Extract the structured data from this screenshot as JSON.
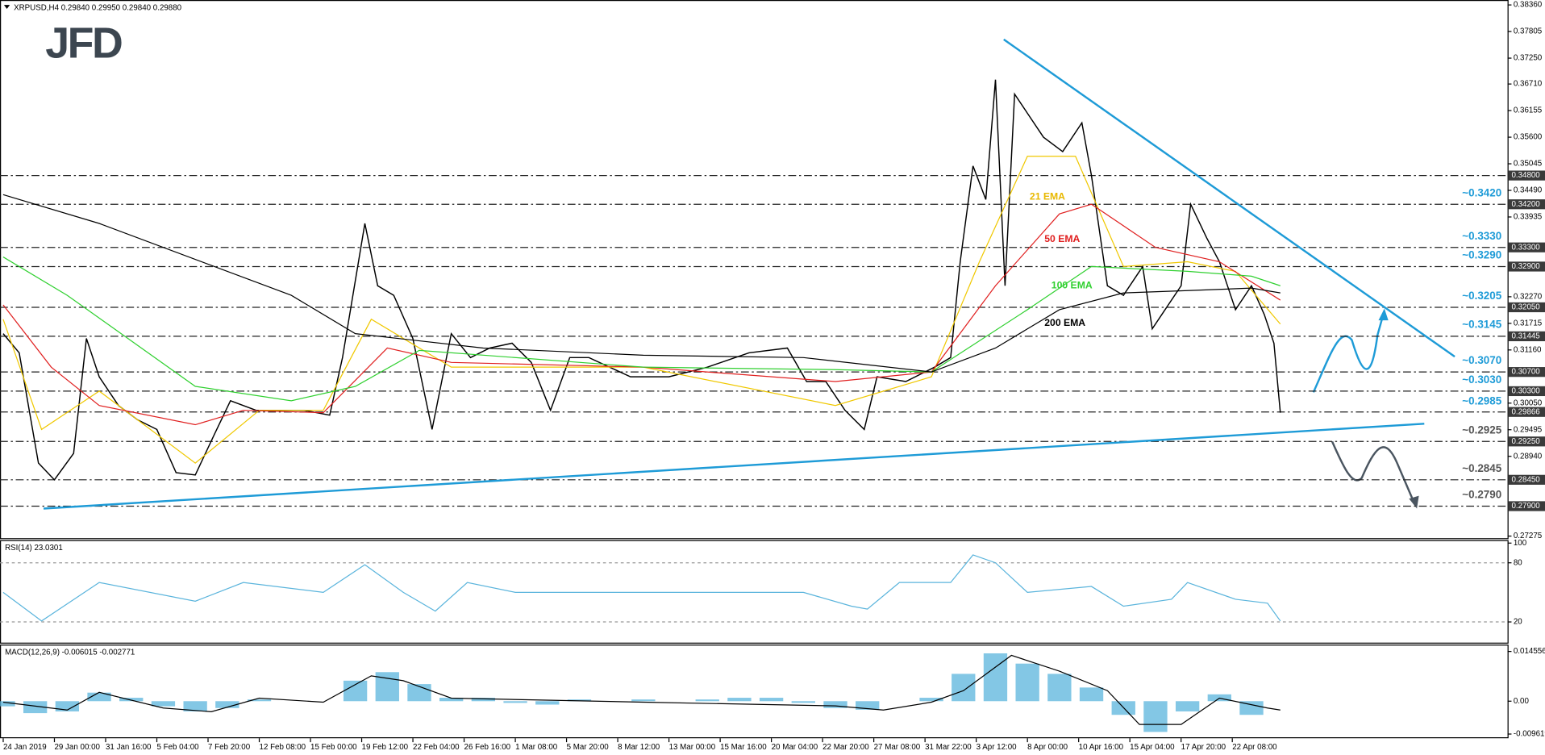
{
  "chart_data": [
    {
      "type": "line",
      "title": "XRPUSD,H4",
      "subtitle": "0.29840 0.29950 0.29840 0.29880",
      "logo": "JFD",
      "xlim": [
        -1,
        470
      ],
      "ylim": [
        0.27232,
        0.38463
      ],
      "xticks": [
        {
          "value": 0,
          "label": "24 Jan 2019"
        },
        {
          "value": 16,
          "label": "29 Jan 00:00"
        },
        {
          "value": 32,
          "label": "31 Jan 16:00"
        },
        {
          "value": 48,
          "label": "5 Feb 04:00"
        },
        {
          "value": 64,
          "label": "7 Feb 20:00"
        },
        {
          "value": 80,
          "label": "12 Feb 08:00"
        },
        {
          "value": 96,
          "label": "15 Feb 00:00"
        },
        {
          "value": 112,
          "label": "19 Feb 12:00"
        },
        {
          "value": 128,
          "label": "22 Feb 04:00"
        },
        {
          "value": 144,
          "label": "26 Feb 16:00"
        },
        {
          "value": 160,
          "label": "1 Mar 08:00"
        },
        {
          "value": 176,
          "label": "5 Mar 20:00"
        },
        {
          "value": 192,
          "label": "8 Mar 12:00"
        },
        {
          "value": 208,
          "label": "13 Mar 00:00"
        },
        {
          "value": 224,
          "label": "15 Mar 16:00"
        },
        {
          "value": 240,
          "label": "20 Mar 04:00"
        },
        {
          "value": 256,
          "label": "22 Mar 20:00"
        },
        {
          "value": 272,
          "label": "27 Mar 08:00"
        },
        {
          "value": 288,
          "label": "31 Mar 22:00"
        },
        {
          "value": 304,
          "label": "3 Apr 12:00"
        },
        {
          "value": 320,
          "label": "8 Apr 00:00"
        },
        {
          "value": 336,
          "label": "10 Apr 16:00"
        },
        {
          "value": 352,
          "label": "15 Apr 04:00"
        },
        {
          "value": 368,
          "label": "17 Apr 20:00"
        },
        {
          "value": 384,
          "label": "22 Apr 08:00"
        }
      ],
      "yticks": [
        {
          "value": 0.3836,
          "label": "0.38360"
        },
        {
          "value": 0.37805,
          "label": "0.37805"
        },
        {
          "value": 0.3725,
          "label": "0.37250"
        },
        {
          "value": 0.3671,
          "label": "0.36710"
        },
        {
          "value": 0.36155,
          "label": "0.36155"
        },
        {
          "value": 0.356,
          "label": "0.35600"
        },
        {
          "value": 0.35045,
          "label": "0.35045"
        },
        {
          "value": 0.3449,
          "label": "0.34490"
        },
        {
          "value": 0.33935,
          "label": "0.33935"
        },
        {
          "value": 0.3227,
          "label": "0.32270"
        },
        {
          "value": 0.31715,
          "label": "0.31715"
        },
        {
          "value": 0.3116,
          "label": "0.31160"
        },
        {
          "value": 0.3005,
          "label": "0.30050"
        },
        {
          "value": 0.29495,
          "label": "0.29495"
        },
        {
          "value": 0.2894,
          "label": "0.28940"
        },
        {
          "value": 0.27275,
          "label": "0.27275"
        }
      ],
      "series": [
        {
          "color": "#000000",
          "x": [
            0,
            5,
            11,
            16,
            22,
            26,
            30,
            36,
            42,
            48,
            54,
            60,
            66,
            71,
            79,
            86,
            94,
            102,
            106,
            113,
            117,
            122,
            128,
            134,
            140,
            146,
            152,
            159,
            165,
            171,
            177,
            183,
            196,
            208,
            220,
            233,
            245,
            251,
            257,
            263,
            269,
            273,
            282,
            291,
            296,
            299,
            303,
            307,
            310,
            313,
            316,
            320,
            325,
            331,
            337,
            340,
            345,
            350,
            356,
            359,
            363,
            368,
            371,
            376,
            380,
            385,
            390,
            394,
            397,
            399
          ],
          "values": [
            0.315,
            0.311,
            0.288,
            0.2845,
            0.29,
            0.314,
            0.306,
            0.3,
            0.297,
            0.295,
            0.286,
            0.2855,
            0.294,
            0.301,
            0.299,
            0.299,
            0.299,
            0.298,
            0.31,
            0.338,
            0.325,
            0.323,
            0.314,
            0.295,
            0.315,
            0.31,
            0.312,
            0.313,
            0.309,
            0.299,
            0.31,
            0.31,
            0.306,
            0.306,
            0.308,
            0.311,
            0.312,
            0.305,
            0.305,
            0.299,
            0.295,
            0.306,
            0.305,
            0.308,
            0.31,
            0.33,
            0.35,
            0.343,
            0.368,
            0.325,
            0.365,
            0.361,
            0.356,
            0.353,
            0.359,
            0.348,
            0.325,
            0.323,
            0.329,
            0.316,
            0.32,
            0.325,
            0.342,
            0.335,
            0.33,
            0.32,
            0.325,
            0.319,
            0.313,
            0.2985
          ]
        },
        {
          "name": "21 EMA",
          "color": "#f0c800",
          "x": [
            0,
            12,
            30,
            60,
            80,
            100,
            115,
            140,
            200,
            260,
            290,
            305,
            320,
            335,
            350,
            370,
            385,
            399
          ],
          "values": [
            0.318,
            0.295,
            0.303,
            0.288,
            0.299,
            0.299,
            0.318,
            0.308,
            0.308,
            0.3,
            0.306,
            0.33,
            0.352,
            0.352,
            0.329,
            0.33,
            0.328,
            0.317
          ]
        },
        {
          "name": "50 EMA",
          "color": "#e02020",
          "x": [
            0,
            15,
            30,
            60,
            75,
            100,
            120,
            140,
            200,
            260,
            290,
            310,
            330,
            340,
            360,
            380,
            399
          ],
          "values": [
            0.321,
            0.308,
            0.3,
            0.296,
            0.299,
            0.2985,
            0.312,
            0.309,
            0.308,
            0.305,
            0.307,
            0.325,
            0.34,
            0.342,
            0.333,
            0.33,
            0.322
          ]
        },
        {
          "name": "100 EMA",
          "color": "#30d030",
          "x": [
            0,
            20,
            60,
            90,
            110,
            130,
            200,
            260,
            290,
            320,
            340,
            370,
            390,
            399
          ],
          "values": [
            0.331,
            0.323,
            0.304,
            0.301,
            0.304,
            0.3115,
            0.308,
            0.3075,
            0.307,
            0.32,
            0.329,
            0.328,
            0.327,
            0.325
          ]
        },
        {
          "name": "200 EMA",
          "color": "#000000",
          "x": [
            0,
            30,
            90,
            110,
            150,
            200,
            250,
            290,
            310,
            330,
            350,
            370,
            390,
            399
          ],
          "values": [
            0.344,
            0.338,
            0.323,
            0.315,
            0.312,
            0.3105,
            0.31,
            0.307,
            0.312,
            0.32,
            0.3235,
            0.324,
            0.3245,
            0.3235
          ]
        }
      ],
      "levels": [
        {
          "value": 0.348,
          "label": "0.34800"
        },
        {
          "value": 0.342,
          "label": "0.34200"
        },
        {
          "value": 0.333,
          "label": "0.33300"
        },
        {
          "value": 0.329,
          "label": "0.32900"
        },
        {
          "value": 0.3205,
          "label": "0.32050"
        },
        {
          "value": 0.31445,
          "label": "0.31445"
        },
        {
          "value": 0.307,
          "label": "0.30700"
        },
        {
          "value": 0.303,
          "label": "0.30300"
        },
        {
          "value": 0.2925,
          "label": "0.29250"
        },
        {
          "value": 0.2845,
          "label": "0.28450"
        },
        {
          "value": 0.279,
          "label": "0.27900"
        }
      ],
      "current": {
        "value": 0.29866,
        "label": "0.29866"
      },
      "notes": [
        {
          "value": 0.342,
          "label": "~0.3420",
          "color": "#1e9bd7"
        },
        {
          "value": 0.333,
          "label": "~0.3330",
          "color": "#1e9bd7"
        },
        {
          "value": 0.329,
          "label": "~0.3290",
          "color": "#1e9bd7"
        },
        {
          "value": 0.3205,
          "label": "~0.3205",
          "color": "#1e9bd7"
        },
        {
          "value": 0.3145,
          "label": "~0.3145",
          "color": "#1e9bd7"
        },
        {
          "value": 0.307,
          "label": "~0.3070",
          "color": "#1e9bd7"
        },
        {
          "value": 0.303,
          "label": "~0.3030",
          "color": "#1e9bd7"
        },
        {
          "value": 0.2985,
          "label": "~0.2985",
          "color": "#1e9bd7"
        },
        {
          "value": 0.2925,
          "label": "~0.2925",
          "color": "#555555"
        },
        {
          "value": 0.2845,
          "label": "~0.2845",
          "color": "#555555"
        },
        {
          "value": 0.279,
          "label": "~0.2790",
          "color": "#555555"
        }
      ],
      "trendlines": [
        {
          "color": "#1e9bd7",
          "x": [
            312.6,
            453.5
          ],
          "values": [
            0.3764,
            0.3102
          ]
        },
        {
          "color": "#1e9bd7",
          "x": [
            12.6,
            444
          ],
          "values": [
            0.2785,
            0.2962
          ]
        }
      ]
    },
    {
      "type": "line",
      "title": "RSI(14) 23.0301",
      "ylim": [
        0,
        102
      ],
      "yticks": [
        20,
        80,
        100
      ],
      "series": [
        {
          "color": "#5ab4dc",
          "x": [
            0,
            12,
            30,
            60,
            75,
            100,
            113,
            125,
            135,
            145,
            160,
            200,
            250,
            265,
            270,
            280,
            296,
            303,
            310,
            320,
            340,
            350,
            365,
            370,
            385,
            395,
            399
          ],
          "values": [
            50,
            21,
            60,
            41,
            60,
            50,
            78,
            50,
            31,
            60,
            50,
            50,
            50,
            36,
            33,
            60,
            60,
            88,
            80,
            50,
            56,
            36,
            43,
            60,
            43,
            39,
            21
          ]
        }
      ]
    },
    {
      "type": "bar",
      "title": "MACD(12,26,9) -0.006015 -0.002771",
      "ylim": [
        -0.01056,
        0.01627
      ],
      "yticks": [
        {
          "value": 0.014556,
          "label": "0.014556"
        },
        {
          "value": 0,
          "label": "0.00"
        },
        {
          "value": -0.009619,
          "label": "-0.009619"
        }
      ],
      "series": [
        {
          "color": "#5ab4dc",
          "x": [
            0,
            10,
            20,
            30,
            40,
            50,
            60,
            70,
            80,
            90,
            100,
            110,
            120,
            130,
            140,
            150,
            160,
            170,
            180,
            190,
            200,
            210,
            220,
            230,
            240,
            250,
            260,
            270,
            280,
            290,
            300,
            310,
            320,
            330,
            340,
            350,
            360,
            370,
            380,
            390
          ],
          "values": [
            -0.0015,
            -0.0035,
            -0.003,
            0.0025,
            0.001,
            -0.0015,
            -0.003,
            -0.002,
            0.0005,
            0,
            0,
            0.006,
            0.0085,
            0.005,
            0.001,
            0.001,
            -0.0005,
            -0.001,
            0.0005,
            0,
            0.0005,
            0,
            0.0005,
            0.001,
            0.001,
            -0.0005,
            -0.002,
            -0.0025,
            0,
            0.001,
            0.008,
            0.014,
            0.011,
            0.008,
            0.004,
            -0.004,
            -0.009,
            -0.003,
            0.002,
            -0.004
          ]
        },
        {
          "color": "#000000",
          "x": [
            0,
            20,
            30,
            50,
            65,
            80,
            100,
            115,
            125,
            140,
            200,
            260,
            275,
            290,
            300,
            315,
            330,
            345,
            355,
            368,
            380,
            395,
            399
          ],
          "values": [
            -0.0003,
            -0.0026,
            0.0026,
            -0.002,
            -0.0031,
            0.0009,
            -0.0003,
            0.0074,
            0.006,
            0.0009,
            -0.0003,
            -0.0014,
            -0.0026,
            -0.0003,
            0.0031,
            0.0134,
            0.0088,
            0.0031,
            -0.0068,
            -0.0068,
            0.0009,
            -0.002,
            -0.0026
          ]
        }
      ]
    }
  ]
}
